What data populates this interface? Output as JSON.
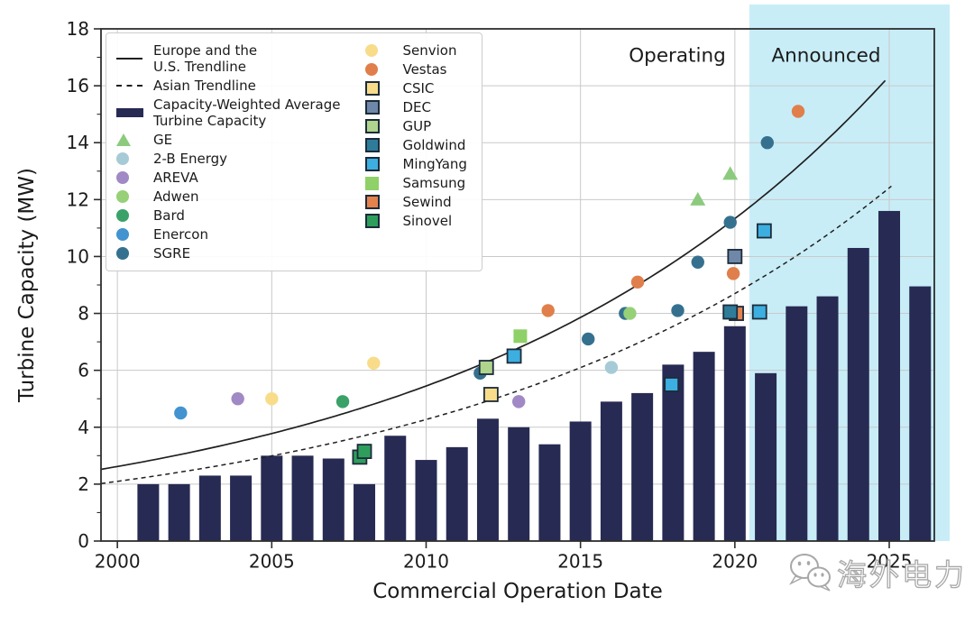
{
  "watermark": {
    "text": "海外电力",
    "logo": "wechat-icon"
  },
  "colors": {
    "bar": "#272b53",
    "announced_region": "#c8edf7",
    "grid": "#c9c9c9",
    "frame": "#2d2d2d",
    "trendline": "#1f1f1f",
    "square_border": "#1c2b3a"
  },
  "legend": {
    "columns": [
      [
        {
          "marker": "line",
          "color": "#1f1f1f",
          "label": "Europe and the\nU.S. Trendline"
        },
        {
          "marker": "dline",
          "color": "#1f1f1f",
          "label": "Asian Trendline"
        },
        {
          "marker": "bar",
          "color": "#272b53",
          "label": "Capacity-Weighted Average\nTurbine Capacity"
        },
        {
          "marker": "triangle",
          "color": "#8ccb7e",
          "label": "GE"
        },
        {
          "marker": "circle",
          "color": "#a6cbd6",
          "label": "2-B Energy"
        },
        {
          "marker": "circle",
          "color": "#a189c5",
          "label": "AREVA"
        },
        {
          "marker": "circle",
          "color": "#96d077",
          "label": "Adwen"
        },
        {
          "marker": "circle",
          "color": "#3aa268",
          "label": "Bard"
        },
        {
          "marker": "circle",
          "color": "#4293cf",
          "label": "Enercon"
        },
        {
          "marker": "circle",
          "color": "#35718f",
          "label": "SGRE"
        }
      ],
      [
        {
          "marker": "circle",
          "color": "#f8dc8a",
          "label": "Senvion"
        },
        {
          "marker": "circle",
          "color": "#e07f4b",
          "label": "Vestas"
        },
        {
          "marker": "square",
          "color": "#f8dc8a",
          "label": "CSIC"
        },
        {
          "marker": "square",
          "color": "#6f88a9",
          "label": "DEC"
        },
        {
          "marker": "square",
          "color": "#afd48d",
          "label": "GUP"
        },
        {
          "marker": "square",
          "color": "#2e7c99",
          "label": "Goldwind"
        },
        {
          "marker": "square",
          "color": "#3daee0",
          "label": "MingYang"
        },
        {
          "marker": "square-plain",
          "color": "#8fd168",
          "label": "Samsung"
        },
        {
          "marker": "square",
          "color": "#e3824e",
          "label": "Sewind"
        },
        {
          "marker": "square",
          "color": "#2f9e5c",
          "label": "Sinovel"
        }
      ]
    ]
  },
  "chart_data": {
    "type": "composite-bar-scatter-line",
    "xlabel": "Commercial Operation Date",
    "ylabel": "Turbine Capacity (MW)",
    "xlim": [
      1999.47,
      2026.46
    ],
    "ylim": [
      0,
      18
    ],
    "xticks": [
      2000,
      2005,
      2010,
      2015,
      2020,
      2025
    ],
    "yticks": [
      0,
      2,
      4,
      6,
      8,
      10,
      12,
      14,
      16,
      18
    ],
    "yticks_minor": [
      1,
      3,
      5,
      7,
      9,
      11,
      13,
      15,
      17
    ],
    "grid": true,
    "legend_position": "upper-left",
    "annotations": [
      {
        "text": "Operating",
        "x": 2018.2,
        "y": 17.1
      },
      {
        "text": "Announced",
        "x": 2023.0,
        "y": 17.1
      }
    ],
    "announced_region": {
      "start_year": 2020.47,
      "label": "Announced"
    },
    "bars": {
      "name": "Capacity-Weighted Average Turbine Capacity",
      "categories": [
        2001,
        2002,
        2003,
        2004,
        2005,
        2006,
        2007,
        2008,
        2009,
        2010,
        2011,
        2012,
        2013,
        2014,
        2015,
        2016,
        2017,
        2018,
        2019,
        2020,
        2021,
        2022,
        2023,
        2024,
        2025,
        2026
      ],
      "values": [
        2.0,
        2.0,
        2.3,
        2.3,
        3.0,
        3.0,
        2.9,
        2.0,
        3.7,
        2.85,
        3.3,
        4.3,
        4.0,
        3.4,
        4.2,
        4.9,
        5.2,
        6.2,
        6.65,
        7.55,
        5.9,
        8.25,
        8.6,
        10.3,
        11.6,
        8.95
      ]
    },
    "trendlines": [
      {
        "name": "Europe and the U.S. Trendline",
        "style": "solid",
        "start_year": 1999.47,
        "start_value": 2.52,
        "end_year": 2025.05,
        "end_value": 16.4
      },
      {
        "name": "Asian Trendline",
        "style": "dashed",
        "start_year": 1999.47,
        "start_value": 2.02,
        "end_year": 2025.1,
        "end_value": 12.5
      }
    ],
    "scatter_series": [
      {
        "name": "GE",
        "marker": "triangle",
        "color": "#8ccb7e",
        "points": [
          [
            2018.8,
            12.0
          ],
          [
            2019.85,
            12.9
          ]
        ]
      },
      {
        "name": "2-B Energy",
        "marker": "circle",
        "color": "#a6cbd6",
        "points": [
          [
            2016.0,
            6.1
          ]
        ]
      },
      {
        "name": "AREVA",
        "marker": "circle",
        "color": "#a189c5",
        "points": [
          [
            2003.9,
            5.0
          ],
          [
            2013.0,
            4.9
          ]
        ]
      },
      {
        "name": "Bard",
        "marker": "circle",
        "color": "#3aa268",
        "points": [
          [
            2007.3,
            4.9
          ]
        ]
      },
      {
        "name": "Enercon",
        "marker": "circle",
        "color": "#4293cf",
        "points": [
          [
            2002.05,
            4.5
          ]
        ]
      },
      {
        "name": "SGRE",
        "marker": "circle",
        "color": "#35718f",
        "points": [
          [
            2011.75,
            5.9
          ],
          [
            2015.25,
            7.1
          ],
          [
            2016.45,
            8.0
          ],
          [
            2018.15,
            8.1
          ],
          [
            2018.8,
            9.8
          ],
          [
            2019.85,
            11.2
          ],
          [
            2021.05,
            14.0
          ]
        ]
      },
      {
        "name": "Adwen",
        "marker": "circle",
        "color": "#96d077",
        "points": [
          [
            2016.6,
            8.0
          ]
        ]
      },
      {
        "name": "Senvion",
        "marker": "circle",
        "color": "#f8dc8a",
        "points": [
          [
            2005.0,
            5.0
          ],
          [
            2008.3,
            6.25
          ]
        ]
      },
      {
        "name": "Vestas",
        "marker": "circle",
        "color": "#e07f4b",
        "points": [
          [
            2013.95,
            8.1
          ],
          [
            2016.85,
            9.1
          ],
          [
            2019.95,
            9.4
          ],
          [
            2022.05,
            15.1
          ]
        ]
      },
      {
        "name": "CSIC",
        "marker": "square",
        "color": "#f8dc8a",
        "points": [
          [
            2012.1,
            5.15
          ]
        ]
      },
      {
        "name": "DEC",
        "marker": "square",
        "color": "#6f88a9",
        "points": [
          [
            2020.0,
            10.0
          ]
        ]
      },
      {
        "name": "GUP",
        "marker": "square",
        "color": "#afd48d",
        "points": [
          [
            2011.95,
            6.1
          ]
        ]
      },
      {
        "name": "Sewind",
        "marker": "square",
        "color": "#e3824e",
        "points": [
          [
            2020.05,
            8.0
          ]
        ]
      },
      {
        "name": "Sinovel",
        "marker": "square",
        "color": "#2f9e5c",
        "points": [
          [
            2007.85,
            2.95
          ],
          [
            2008.0,
            3.15
          ]
        ]
      },
      {
        "name": "Goldwind",
        "marker": "square",
        "color": "#2e7c99",
        "points": [
          [
            2019.85,
            8.05
          ]
        ]
      },
      {
        "name": "MingYang",
        "marker": "square",
        "color": "#3daee0",
        "points": [
          [
            2012.85,
            6.5
          ],
          [
            2017.95,
            5.5
          ],
          [
            2020.8,
            8.05
          ],
          [
            2020.95,
            10.9
          ]
        ]
      },
      {
        "name": "Samsung",
        "marker": "square-plain",
        "color": "#8fd168",
        "points": [
          [
            2013.05,
            7.2
          ]
        ]
      }
    ]
  }
}
